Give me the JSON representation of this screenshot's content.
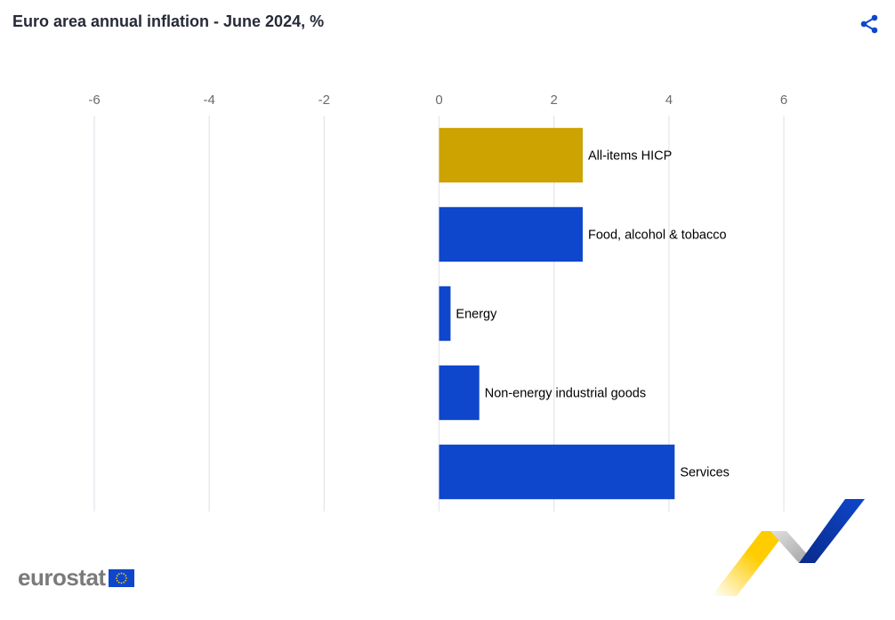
{
  "title": "Euro area annual inflation - June 2024, %",
  "share_icon": "share-icon",
  "brand": {
    "name": "eurostat",
    "flag_color": "#0e47cb",
    "star_color": "#ffcc00"
  },
  "chart_data": {
    "type": "bar",
    "orientation": "horizontal",
    "categories": [
      "All-items HICP",
      "Food, alcohol & tobacco",
      "Energy",
      "Non-energy industrial goods",
      "Services"
    ],
    "values": [
      2.5,
      2.5,
      0.2,
      0.7,
      4.1
    ],
    "colors": [
      "#cca300",
      "#0e47cb",
      "#0e47cb",
      "#0e47cb",
      "#0e47cb"
    ],
    "xlim": [
      -6,
      7.3
    ],
    "xticks": [
      -6,
      -4,
      -2,
      0,
      2,
      4,
      6
    ],
    "tick_labels": [
      "-6",
      "-4",
      "-2",
      "0",
      "2",
      "4",
      "6"
    ],
    "grid": true,
    "axis_position": "top",
    "xlabel": "",
    "ylabel": ""
  }
}
